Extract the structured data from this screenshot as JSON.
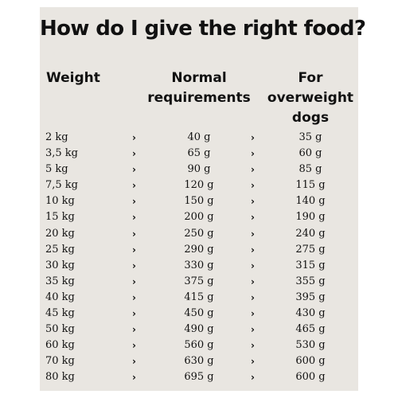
{
  "title": "How do I give the right food?",
  "columns": {
    "weight": "Weight",
    "normal": [
      "Normal",
      "requirements"
    ],
    "overweight": [
      "For",
      "overweight",
      "dogs"
    ]
  },
  "arrow": "›",
  "rows": [
    {
      "weight": "2 kg",
      "normal": "40 g",
      "overweight": "35 g"
    },
    {
      "weight": "3,5 kg",
      "normal": "65 g",
      "overweight": "60 g"
    },
    {
      "weight": "5 kg",
      "normal": "90 g",
      "overweight": "85 g"
    },
    {
      "weight": "7,5 kg",
      "normal": "120 g",
      "overweight": "115 g"
    },
    {
      "weight": "10 kg",
      "normal": "150 g",
      "overweight": "140 g"
    },
    {
      "weight": "15 kg",
      "normal": "200 g",
      "overweight": "190 g"
    },
    {
      "weight": "20 kg",
      "normal": "250 g",
      "overweight": "240 g"
    },
    {
      "weight": "25 kg",
      "normal": "290 g",
      "overweight": "275 g"
    },
    {
      "weight": "30 kg",
      "normal": "330 g",
      "overweight": "315 g"
    },
    {
      "weight": "35 kg",
      "normal": "375 g",
      "overweight": "355 g"
    },
    {
      "weight": "40 kg",
      "normal": "415 g",
      "overweight": "395 g"
    },
    {
      "weight": "45 kg",
      "normal": "450 g",
      "overweight": "430 g"
    },
    {
      "weight": "50 kg",
      "normal": "490 g",
      "overweight": "465 g"
    },
    {
      "weight": "60 kg",
      "normal": "560 g",
      "overweight": "530 g"
    },
    {
      "weight": "70 kg",
      "normal": "630 g",
      "overweight": "600 g"
    },
    {
      "weight": "80 kg",
      "normal": "695 g",
      "overweight": "600 g"
    }
  ],
  "colors": {
    "card_background": "#e9e6e1",
    "text": "#111111"
  }
}
